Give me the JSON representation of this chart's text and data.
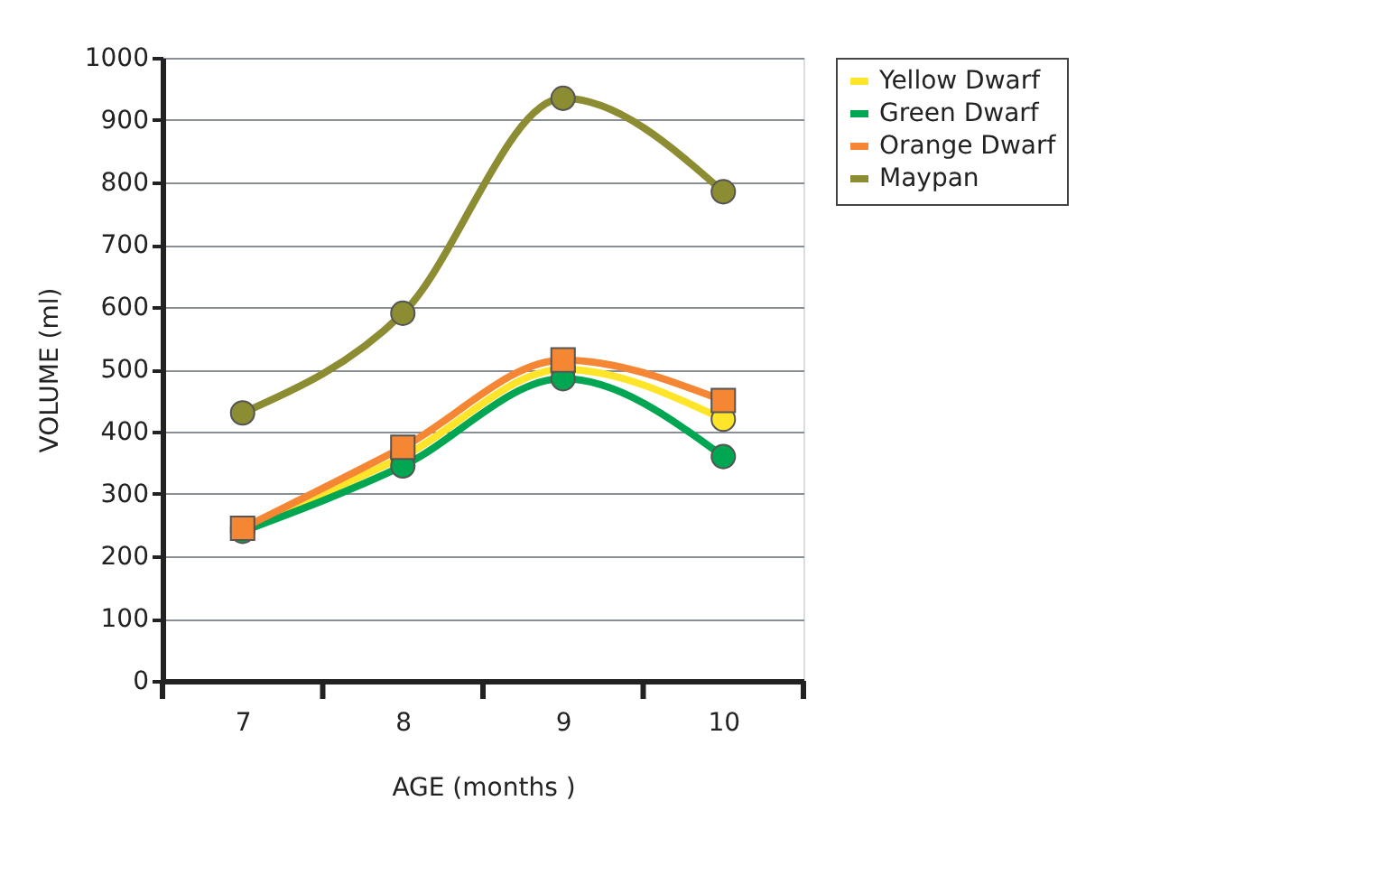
{
  "chart_data": {
    "type": "line",
    "xlabel": "AGE (months )",
    "ylabel": "VOLUME (ml)",
    "categories": [
      "7",
      "8",
      "9",
      "10"
    ],
    "series": [
      {
        "name": "Yellow Dwarf",
        "color": "#ffe529",
        "marker": "circle",
        "values": [
          245,
          360,
          500,
          420
        ]
      },
      {
        "name": "Green Dwarf",
        "color": "#00a651",
        "marker": "circle",
        "values": [
          240,
          345,
          485,
          360
        ]
      },
      {
        "name": "Orange Dwarf",
        "color": "#f58634",
        "marker": "square",
        "values": [
          245,
          375,
          515,
          450
        ]
      },
      {
        "name": "Maypan",
        "color": "#8c8c33",
        "marker": "circle",
        "values": [
          430,
          590,
          935,
          785
        ]
      }
    ],
    "ylim": [
      0,
      1000
    ],
    "yticks": [
      0,
      100,
      200,
      300,
      400,
      500,
      600,
      700,
      800,
      900,
      1000
    ],
    "grid": "y",
    "legend": "right",
    "line_style": "solid"
  }
}
